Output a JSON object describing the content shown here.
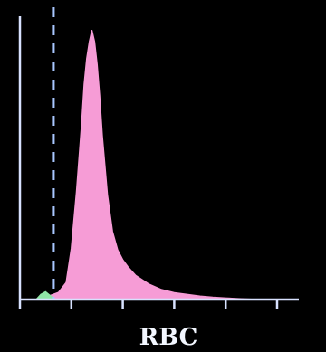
{
  "colors": {
    "background": "#000000",
    "axis": "#d8e2ff",
    "threshold_line": "#a9c7ff",
    "distribution_fill": "#f69cd6",
    "small_peak_fill": "#8fe4a6",
    "label": "#f3f7ff"
  },
  "chart_data": {
    "type": "area",
    "title": "",
    "xlabel": "RBC",
    "ylabel": "",
    "grid": false,
    "legend": "none",
    "xlim": [
      0,
      100
    ],
    "ylim": [
      0,
      100
    ],
    "x_ticks": [
      0,
      20,
      40,
      60,
      80,
      100
    ],
    "threshold_x": 13,
    "series": [
      {
        "x": [
          6,
          9,
          12,
          15,
          18,
          20,
          22,
          24,
          25,
          26,
          27,
          28,
          29,
          30,
          31,
          32,
          34,
          36,
          38,
          40,
          42,
          45,
          50,
          55,
          60,
          65,
          70,
          75,
          80,
          85,
          90,
          95
        ],
        "values": [
          0,
          0.5,
          1.5,
          2.5,
          6,
          18,
          38,
          62,
          76,
          85,
          91,
          95,
          91,
          83,
          72,
          58,
          37,
          24,
          17.5,
          14,
          11.5,
          8.5,
          5.5,
          3.5,
          2.4,
          1.8,
          1.2,
          0.8,
          0.5,
          0.3,
          0.1,
          0
        ]
      }
    ],
    "small_peak": {
      "x": [
        6,
        8,
        10,
        12,
        14
      ],
      "values": [
        0,
        2,
        3,
        1.5,
        0
      ]
    }
  }
}
